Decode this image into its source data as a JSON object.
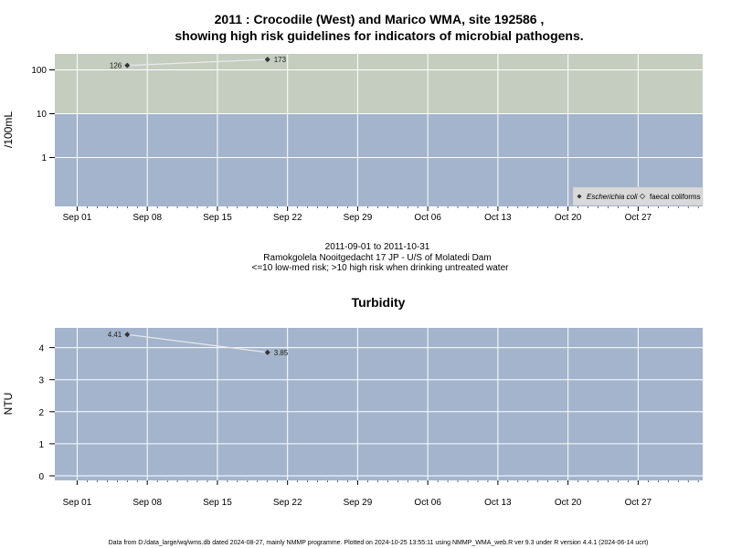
{
  "chart_data": [
    {
      "type": "line",
      "title_line1": "2011 : Crocodile (West) and Marico WMA, site 192586 ,",
      "title_line2": "showing high risk guidelines for indicators of microbial pathogens.",
      "ylabel": "/100mL",
      "y_scale": "log",
      "y_ticks": [
        1,
        10,
        100
      ],
      "y_tick_labels": [
        "1",
        "10",
        "100"
      ],
      "x_tick_labels": [
        "Sep 01",
        "Sep 08",
        "Sep 15",
        "Sep 22",
        "Sep 29",
        "Oct 06",
        "Oct 13",
        "Oct 20",
        "Oct 27"
      ],
      "x_tick_dates": [
        "2011-09-01",
        "2011-09-08",
        "2011-09-15",
        "2011-09-22",
        "2011-09-29",
        "2011-10-06",
        "2011-10-13",
        "2011-10-20",
        "2011-10-27"
      ],
      "grid": true,
      "risk_zones": [
        {
          "range": [
            10,
            null
          ],
          "color": "#c4cdc0",
          "meaning": ">10 high risk"
        },
        {
          "range": [
            null,
            10
          ],
          "color": "#a3b4cc",
          "meaning": "<=10 low-med risk"
        }
      ],
      "series": [
        {
          "name": "Escherichia coli",
          "marker": "filled-diamond",
          "color": "#333333",
          "x": [
            "2011-09-06",
            "2011-09-20"
          ],
          "values": [
            126,
            173
          ],
          "labels": [
            "126",
            "173"
          ]
        }
      ],
      "legend": {
        "placement": "bottom-right",
        "entries": [
          {
            "label": "Escherichia coli",
            "marker": "filled-diamond",
            "italic": true
          },
          {
            "label": "faecal coliforms",
            "marker": "open-diamond",
            "italic": false
          }
        ]
      },
      "subtitle_lines": [
        "2011-09-01 to 2011-10-31",
        "Ramokgolela Nooitgedacht 17 JP - U/S of Molatedi Dam",
        "<=10 low-med risk; >10 high risk when drinking untreated water"
      ]
    },
    {
      "type": "line",
      "title": "Turbidity",
      "ylabel": "NTU",
      "y_ticks": [
        0,
        1,
        2,
        3,
        4
      ],
      "y_tick_labels": [
        "0",
        "1",
        "2",
        "3",
        "4"
      ],
      "x_tick_labels": [
        "Sep 01",
        "Sep 08",
        "Sep 15",
        "Sep 22",
        "Sep 29",
        "Oct 06",
        "Oct 13",
        "Oct 20",
        "Oct 27"
      ],
      "x_tick_dates": [
        "2011-09-01",
        "2011-09-08",
        "2011-09-15",
        "2011-09-22",
        "2011-09-29",
        "2011-10-06",
        "2011-10-13",
        "2011-10-20",
        "2011-10-27"
      ],
      "grid": true,
      "background": "#a3b4cc",
      "series": [
        {
          "marker": "filled-diamond",
          "color": "#333333",
          "x": [
            "2011-09-06",
            "2011-09-20"
          ],
          "values": [
            4.41,
            3.85
          ],
          "labels": [
            "4.41",
            "3.85"
          ]
        }
      ]
    }
  ],
  "footer": "Data from D:/data_large/wq/wms.db dated 2024-08-27, mainly NMMP programme. Plotted on 2024-10-25 13:55:11 using NMMP_WMA_web.R ver 9.3 under R version 4.4.1 (2024-06-14 ucrt)"
}
